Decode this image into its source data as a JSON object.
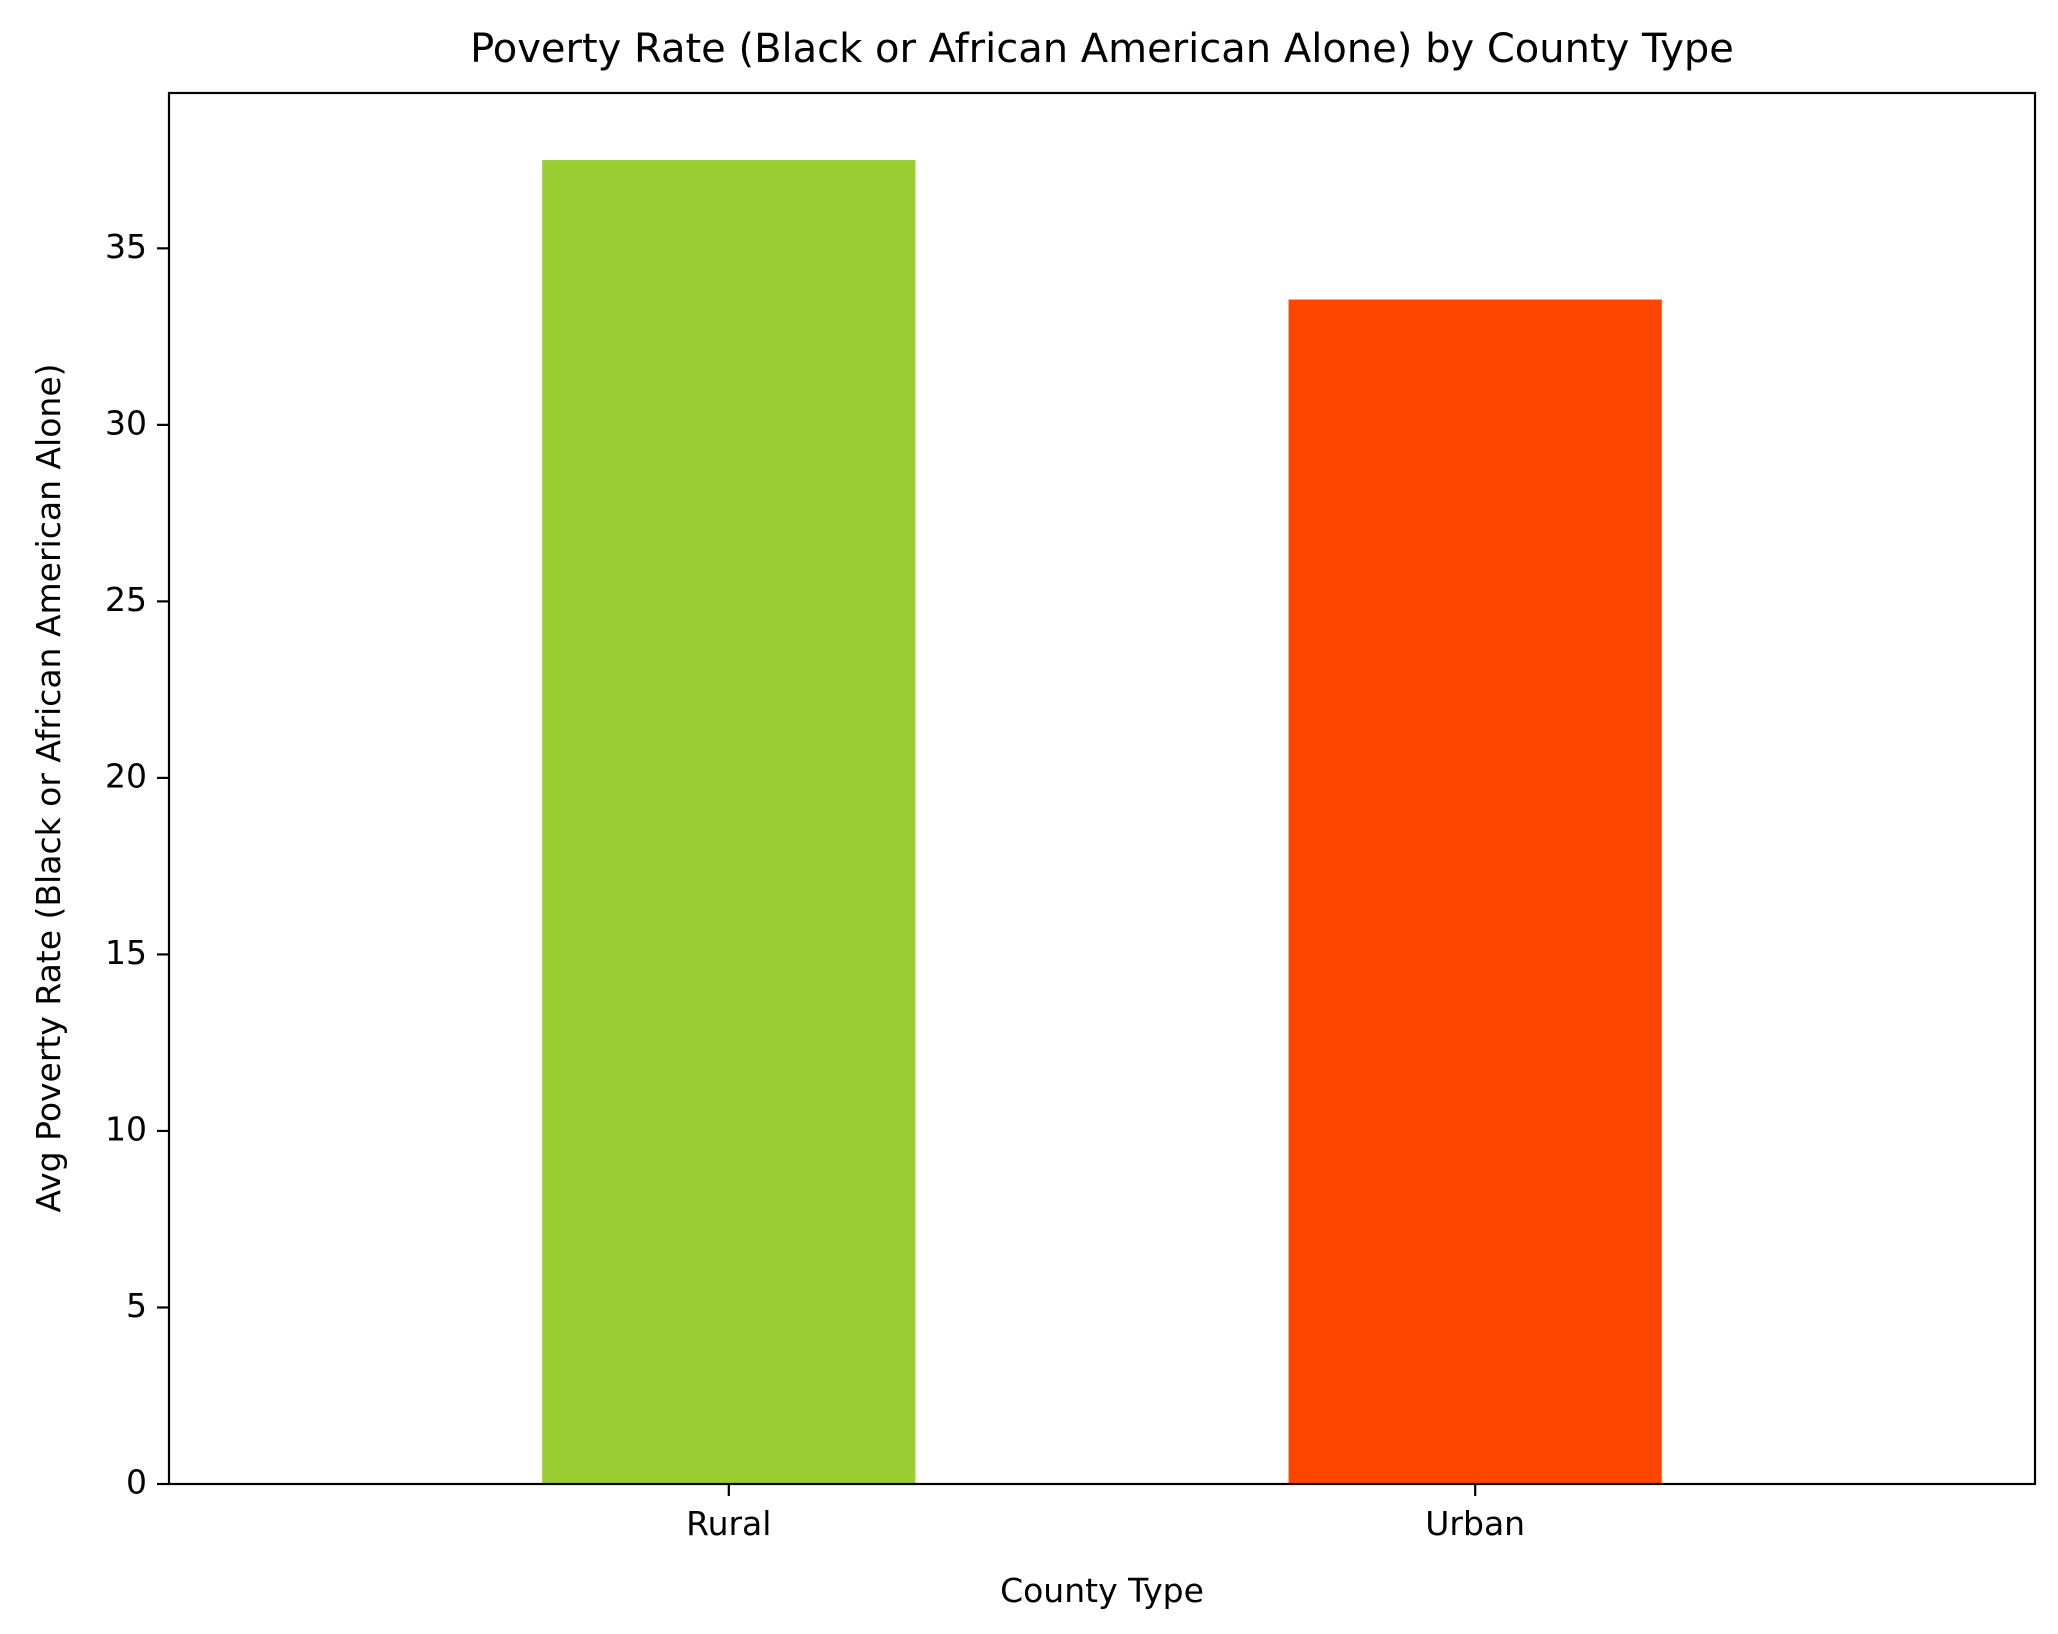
{
  "chart_data": {
    "type": "bar",
    "title": "Poverty Rate (Black or African American Alone) by County Type",
    "xlabel": "County Type",
    "ylabel": "Avg Poverty Rate (Black or African American Alone)",
    "categories": [
      "Rural",
      "Urban"
    ],
    "values": [
      37.5,
      33.55
    ],
    "colors": [
      "#9acd32",
      "#ff4500"
    ],
    "ylim": [
      0,
      39.4
    ],
    "yticks": [
      0,
      5,
      10,
      15,
      20,
      25,
      30,
      35
    ],
    "grid": false,
    "legend": "none"
  }
}
